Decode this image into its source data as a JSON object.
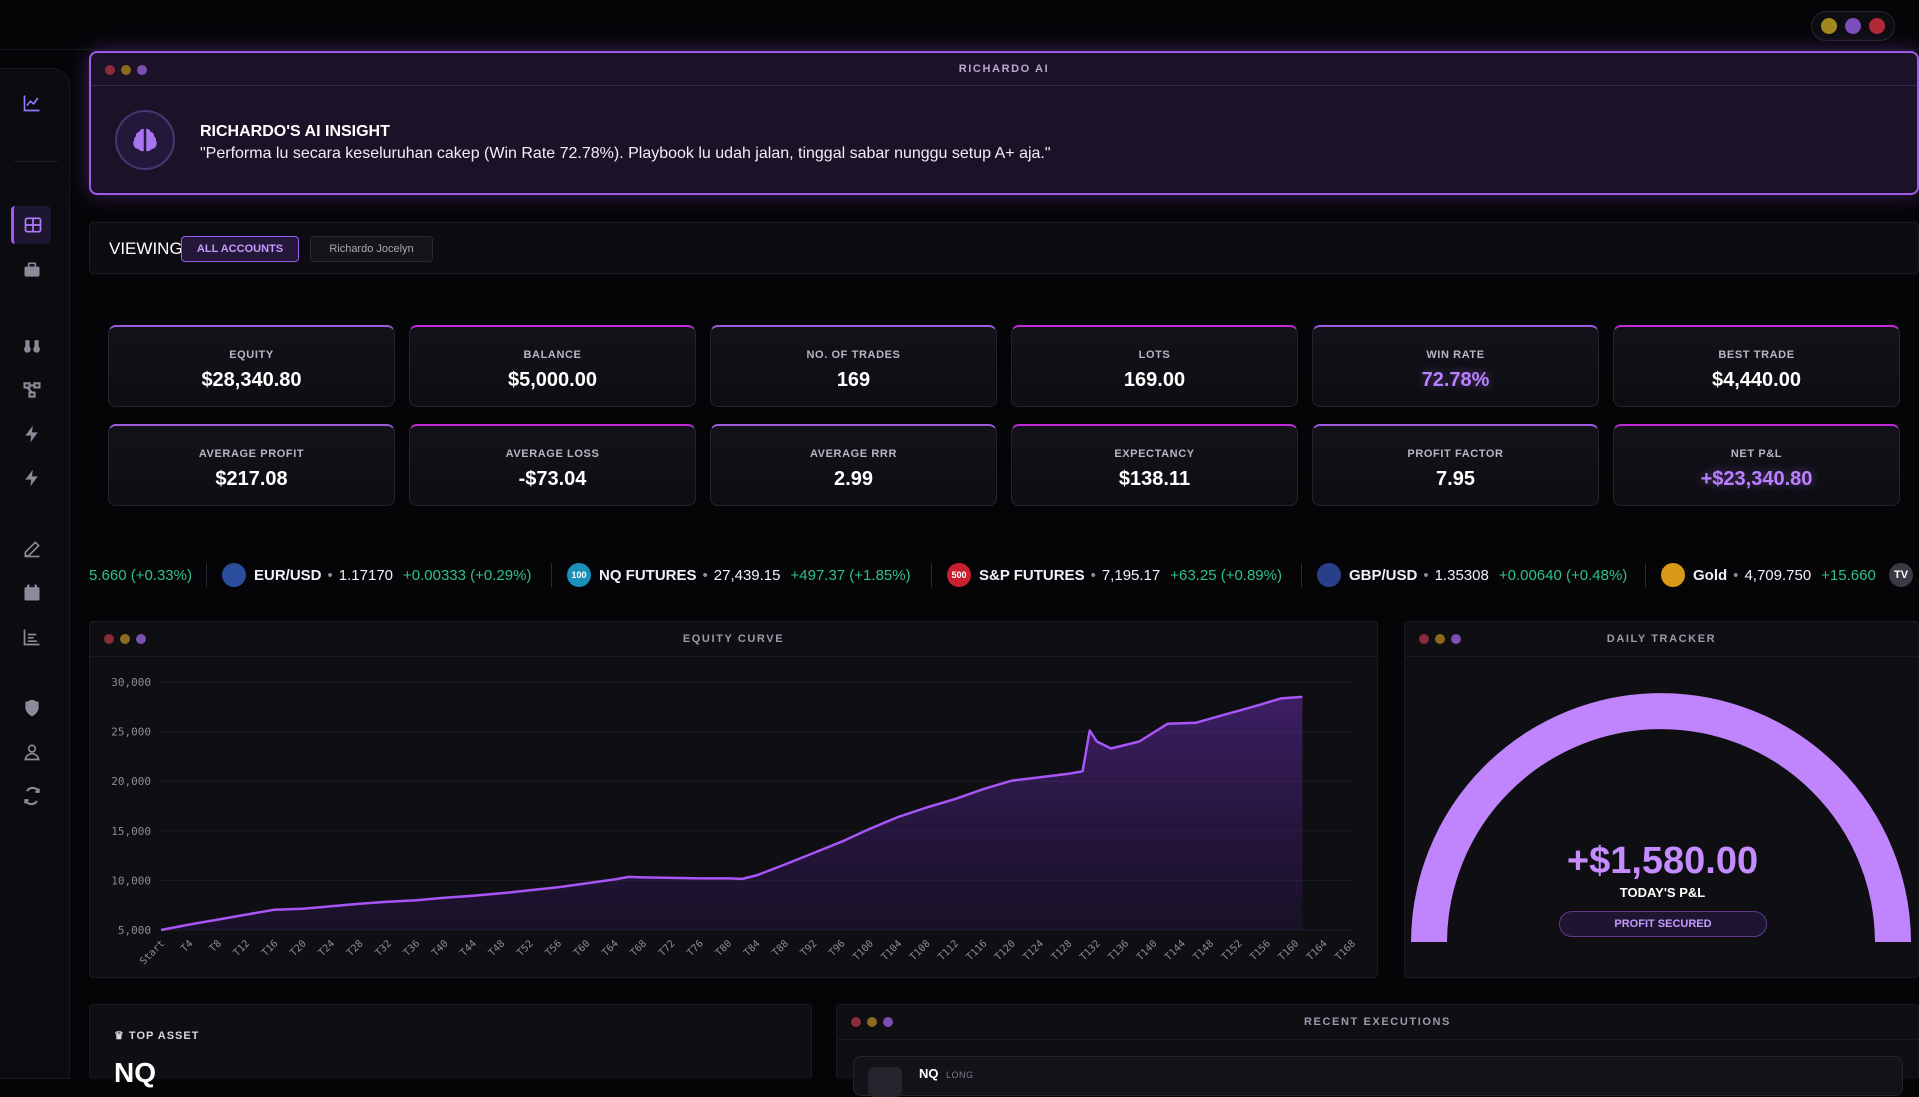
{
  "window": {
    "controls": [
      {
        "name": "minimize",
        "color": "#a08a1f"
      },
      {
        "name": "maximize",
        "color": "#7c4dbd"
      },
      {
        "name": "close",
        "color": "#b22a3a"
      }
    ]
  },
  "sidebar": {
    "items": [
      "chart-line",
      "grid",
      "briefcase",
      "binoculars",
      "network",
      "bolt",
      "bolt-alt",
      "edit",
      "calendar",
      "list-chart",
      "shield",
      "user-secret",
      "refresh"
    ],
    "active": "grid"
  },
  "ai": {
    "window_title": "RICHARDO AI",
    "heading": "RICHARDO'S AI INSIGHT",
    "message": "\"Performa lu secara keseluruhan cakep (Win Rate 72.78%). Playbook lu udah jalan, tinggal sabar nunggu setup A+ aja.\""
  },
  "viewing": {
    "label": "VIEWING:",
    "all_accounts": "ALL ACCOUNTS",
    "account": "Richardo Jocelyn"
  },
  "stats": [
    {
      "label": "EQUITY",
      "value": "$28,340.80",
      "accent": false,
      "border": "violet"
    },
    {
      "label": "BALANCE",
      "value": "$5,000.00",
      "accent": false,
      "border": "magenta"
    },
    {
      "label": "NO. OF TRADES",
      "value": "169",
      "accent": false,
      "border": "violet"
    },
    {
      "label": "LOTS",
      "value": "169.00",
      "accent": false,
      "border": "magenta"
    },
    {
      "label": "WIN RATE",
      "value": "72.78%",
      "accent": true,
      "border": "violet"
    },
    {
      "label": "BEST TRADE",
      "value": "$4,440.00",
      "accent": false,
      "border": "magenta"
    },
    {
      "label": "AVERAGE PROFIT",
      "value": "$217.08",
      "accent": false,
      "border": "violet"
    },
    {
      "label": "AVERAGE LOSS",
      "value": "-$73.04",
      "accent": false,
      "border": "magenta"
    },
    {
      "label": "AVERAGE RRR",
      "value": "2.99",
      "accent": false,
      "border": "violet"
    },
    {
      "label": "EXPECTANCY",
      "value": "$138.11",
      "accent": false,
      "border": "magenta"
    },
    {
      "label": "PROFIT FACTOR",
      "value": "7.95",
      "accent": false,
      "border": "violet"
    },
    {
      "label": "NET P&L",
      "value": "+$23,340.80",
      "accent": true,
      "border": "magenta"
    }
  ],
  "ticker": {
    "lead_fragment": "5.660 (+0.33%)",
    "items": [
      {
        "symbol": "EUR/USD",
        "price": "1.17170",
        "change": "+0.00333 (+0.29%)",
        "badge": "",
        "badge_color": "#2a4d9c"
      },
      {
        "symbol": "NQ FUTURES",
        "price": "27,439.15",
        "change": "+497.37 (+1.85%)",
        "badge": "100",
        "badge_color": "#1b8fb8"
      },
      {
        "symbol": "S&P FUTURES",
        "price": "7,195.17",
        "change": "+63.25 (+0.89%)",
        "badge": "500",
        "badge_color": "#c8202f"
      },
      {
        "symbol": "GBP/USD",
        "price": "1.35308",
        "change": "+0.00640 (+0.48%)",
        "badge": "",
        "badge_color": "#2a3f8a"
      },
      {
        "symbol": "Gold",
        "price": "4,709.750",
        "change": "+15.660",
        "badge": "",
        "badge_color": "#d89a16"
      }
    ],
    "logo": "TV"
  },
  "equity": {
    "window_title": "EQUITY CURVE",
    "chart_data": {
      "type": "area",
      "yticks": [
        "5,000",
        "10,000",
        "15,000",
        "20,000",
        "25,000",
        "30,000"
      ],
      "xticks": [
        "Start",
        "T4",
        "T8",
        "T12",
        "T16",
        "T20",
        "T24",
        "T28",
        "T32",
        "T36",
        "T40",
        "T44",
        "T48",
        "T52",
        "T56",
        "T60",
        "T64",
        "T68",
        "T72",
        "T76",
        "T80",
        "T84",
        "T88",
        "T92",
        "T96",
        "T100",
        "T104",
        "T108",
        "T112",
        "T116",
        "T120",
        "T124",
        "T128",
        "T132",
        "T136",
        "T140",
        "T144",
        "T148",
        "T152",
        "T156",
        "T160",
        "T164",
        "T168"
      ],
      "ylim": [
        5000,
        30000
      ],
      "points": [
        [
          0,
          5000
        ],
        [
          4,
          5550
        ],
        [
          8,
          6050
        ],
        [
          12,
          6550
        ],
        [
          16,
          7050
        ],
        [
          20,
          7150
        ],
        [
          24,
          7400
        ],
        [
          28,
          7650
        ],
        [
          32,
          7850
        ],
        [
          36,
          8000
        ],
        [
          40,
          8250
        ],
        [
          44,
          8450
        ],
        [
          48,
          8700
        ],
        [
          52,
          9000
        ],
        [
          56,
          9300
        ],
        [
          60,
          9700
        ],
        [
          64,
          10100
        ],
        [
          66,
          10350
        ],
        [
          68,
          10300
        ],
        [
          72,
          10250
        ],
        [
          76,
          10200
        ],
        [
          80,
          10200
        ],
        [
          82,
          10150
        ],
        [
          84,
          10500
        ],
        [
          88,
          11600
        ],
        [
          92,
          12750
        ],
        [
          96,
          13900
        ],
        [
          100,
          15200
        ],
        [
          104,
          16400
        ],
        [
          108,
          17350
        ],
        [
          112,
          18200
        ],
        [
          116,
          19200
        ],
        [
          120,
          20050
        ],
        [
          124,
          20400
        ],
        [
          128,
          20750
        ],
        [
          130,
          21000
        ],
        [
          131,
          25100
        ],
        [
          132,
          24000
        ],
        [
          134,
          23300
        ],
        [
          138,
          24000
        ],
        [
          142,
          25800
        ],
        [
          146,
          25900
        ],
        [
          150,
          26700
        ],
        [
          154,
          27500
        ],
        [
          158,
          28350
        ],
        [
          161,
          28500
        ]
      ],
      "line_color": "#a855f7"
    }
  },
  "daily": {
    "window_title": "DAILY TRACKER",
    "value": "+$1,580.00",
    "label": "TODAY'S P&L",
    "badge": "PROFIT SECURED",
    "fraction": 1.0,
    "color": "#c084fc"
  },
  "top_asset": {
    "label": "♛ TOP ASSET",
    "value": "NQ"
  },
  "recent": {
    "window_title": "RECENT EXECUTIONS",
    "rows": [
      {
        "symbol": "NQ",
        "side": "LONG"
      }
    ]
  }
}
